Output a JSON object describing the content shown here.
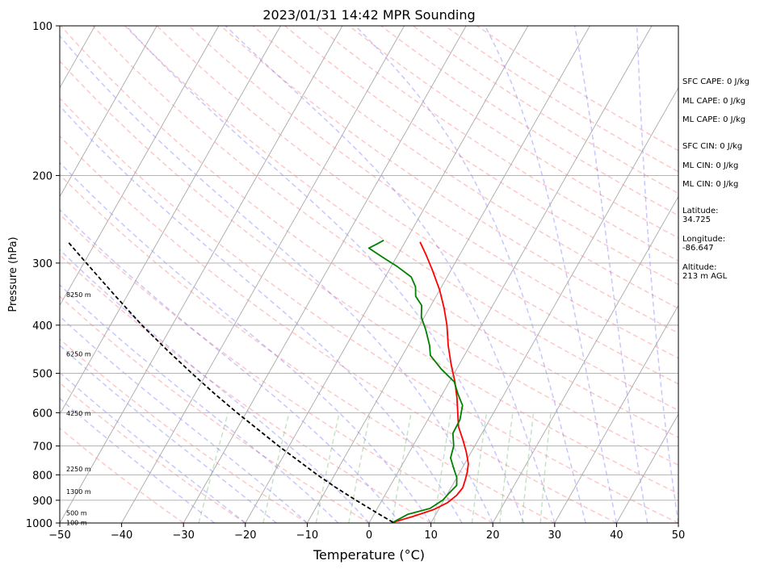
{
  "chart_data": {
    "type": "line",
    "title": "2023/01/31 14:42 MPR Sounding",
    "xlabel": "Temperature (°C)",
    "ylabel": "Pressure (hPa)",
    "xlim": [
      -50,
      50
    ],
    "ylim": [
      1000,
      100
    ],
    "y_scale": "log",
    "skew": "skew-T log-p",
    "grid": true,
    "x_ticks": [
      "−50",
      "−40",
      "−30",
      "−20",
      "−10",
      "0",
      "10",
      "20",
      "30",
      "40",
      "50"
    ],
    "y_ticks": [
      "100",
      "200",
      "300",
      "400",
      "500",
      "600",
      "700",
      "800",
      "900",
      "1000"
    ],
    "series": [
      {
        "key": "temperature",
        "color": "#ff0000",
        "points": [
          {
            "p": 997,
            "t": 3.8
          },
          {
            "p": 970,
            "t": 6.5
          },
          {
            "p": 940,
            "t": 9.2
          },
          {
            "p": 910,
            "t": 10.8
          },
          {
            "p": 880,
            "t": 11.6
          },
          {
            "p": 850,
            "t": 11.9
          },
          {
            "p": 820,
            "t": 11.6
          },
          {
            "p": 790,
            "t": 11.2
          },
          {
            "p": 760,
            "t": 10.6
          },
          {
            "p": 720,
            "t": 9.2
          },
          {
            "p": 680,
            "t": 7.5
          },
          {
            "p": 640,
            "t": 5.6
          },
          {
            "p": 600,
            "t": 4.2
          },
          {
            "p": 560,
            "t": 2.7
          },
          {
            "p": 520,
            "t": 0.9
          },
          {
            "p": 480,
            "t": -1.3
          },
          {
            "p": 440,
            "t": -3.5
          },
          {
            "p": 400,
            "t": -5.6
          },
          {
            "p": 370,
            "t": -7.6
          },
          {
            "p": 340,
            "t": -10.0
          },
          {
            "p": 310,
            "t": -13.0
          },
          {
            "p": 290,
            "t": -15.3
          },
          {
            "p": 272,
            "t": -17.6
          }
        ]
      },
      {
        "key": "dewpoint",
        "color": "#008000",
        "points": [
          {
            "p": 997,
            "t": 3.8
          },
          {
            "p": 960,
            "t": 5.5
          },
          {
            "p": 935,
            "t": 8.5
          },
          {
            "p": 900,
            "t": 9.8
          },
          {
            "p": 870,
            "t": 10.2
          },
          {
            "p": 840,
            "t": 10.7
          },
          {
            "p": 810,
            "t": 10.0
          },
          {
            "p": 780,
            "t": 8.8
          },
          {
            "p": 740,
            "t": 7.2
          },
          {
            "p": 700,
            "t": 6.6
          },
          {
            "p": 660,
            "t": 5.3
          },
          {
            "p": 620,
            "t": 5.2
          },
          {
            "p": 580,
            "t": 4.3
          },
          {
            "p": 550,
            "t": 2.5
          },
          {
            "p": 520,
            "t": 0.8
          },
          {
            "p": 490,
            "t": -2.5
          },
          {
            "p": 460,
            "t": -5.5
          },
          {
            "p": 440,
            "t": -6.5
          },
          {
            "p": 410,
            "t": -8.5
          },
          {
            "p": 385,
            "t": -10.5
          },
          {
            "p": 365,
            "t": -11.5
          },
          {
            "p": 350,
            "t": -13.3
          },
          {
            "p": 335,
            "t": -14.2
          },
          {
            "p": 320,
            "t": -15.8
          },
          {
            "p": 305,
            "t": -19.0
          },
          {
            "p": 295,
            "t": -21.5
          },
          {
            "p": 285,
            "t": -24.0
          },
          {
            "p": 280,
            "t": -25.3
          },
          {
            "p": 275,
            "t": -24.4
          },
          {
            "p": 270,
            "t": -23.6
          }
        ]
      },
      {
        "key": "parcel",
        "color": "#000000",
        "dashed": true,
        "points": [
          {
            "p": 997,
            "t": 3.8
          },
          {
            "p": 950,
            "t": 0.0
          },
          {
            "p": 900,
            "t": -4.2
          },
          {
            "p": 850,
            "t": -8.5
          },
          {
            "p": 800,
            "t": -12.8
          },
          {
            "p": 750,
            "t": -17.1
          },
          {
            "p": 700,
            "t": -21.7
          },
          {
            "p": 650,
            "t": -26.4
          },
          {
            "p": 600,
            "t": -31.5
          },
          {
            "p": 550,
            "t": -36.8
          },
          {
            "p": 500,
            "t": -42.4
          },
          {
            "p": 450,
            "t": -48.4
          },
          {
            "p": 400,
            "t": -54.9
          },
          {
            "p": 350,
            "t": -61.8
          },
          {
            "p": 300,
            "t": -69.6
          },
          {
            "p": 272,
            "t": -74.5
          }
        ]
      }
    ],
    "height_labels": [
      {
        "p": 998,
        "text": "100 m"
      },
      {
        "p": 955,
        "text": "500 m"
      },
      {
        "p": 865,
        "text": "1300 m"
      },
      {
        "p": 778,
        "text": "2250 m"
      },
      {
        "p": 602,
        "text": "4250 m"
      },
      {
        "p": 457,
        "text": "6250 m"
      },
      {
        "p": 347,
        "text": "8250 m"
      }
    ],
    "annotations": [
      {
        "text": "SFC CAPE: 0 J/kg"
      },
      {
        "text": "ML CAPE: 0 J/kg"
      },
      {
        "text": "ML CAPE: 0 J/kg"
      },
      {
        "text": "SFC CIN: 0 J/kg"
      },
      {
        "text": "ML CIN: 0 J/kg"
      },
      {
        "text": "ML CIN: 0 J/kg"
      },
      {
        "text": "Latitude:\n34.725"
      },
      {
        "text": "Longitude:\n-86.647"
      },
      {
        "text": "Altitude:\n213 m AGL"
      }
    ],
    "colors": {
      "dry_adiabats": "#ff0000",
      "moist_adiabats": "#0000ff",
      "mixing_ratio": "#008000",
      "isotherms": "#a9a9a9"
    }
  }
}
